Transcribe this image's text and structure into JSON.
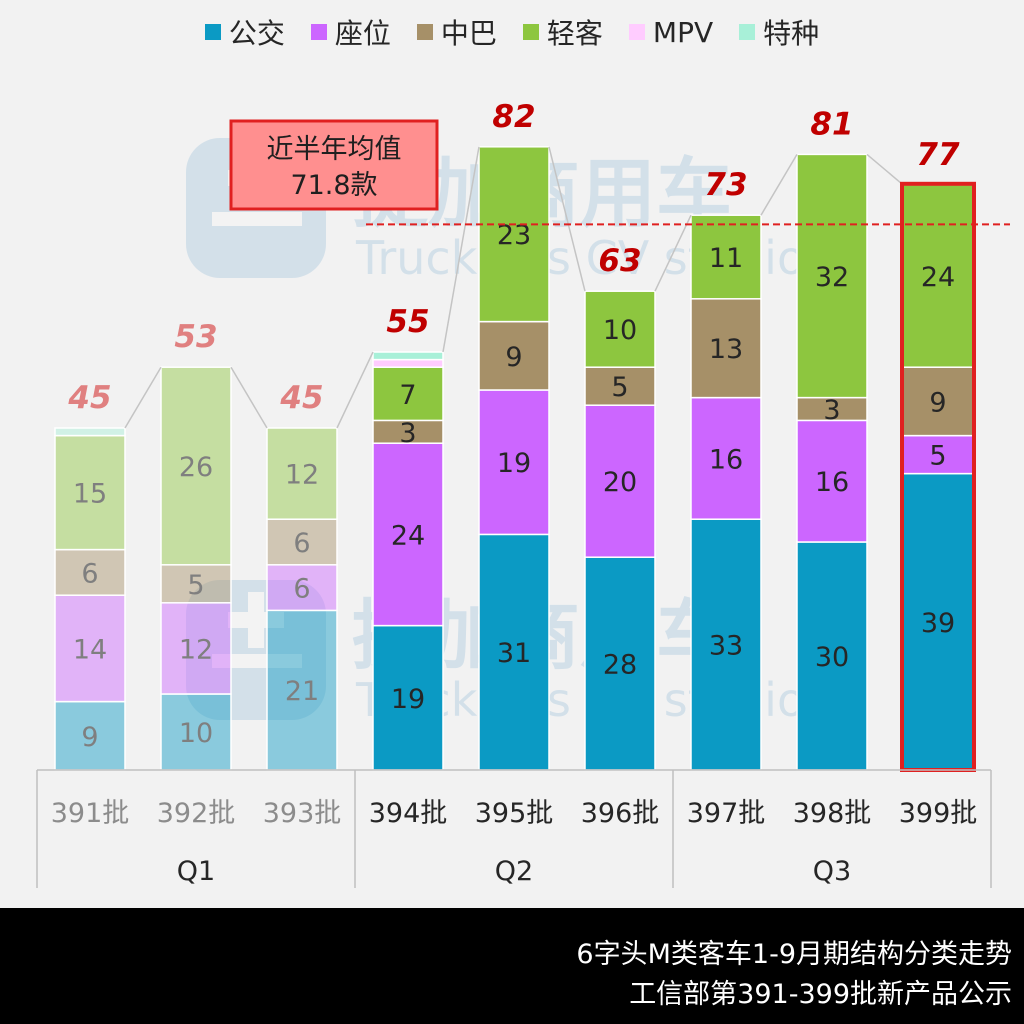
{
  "legend": [
    {
      "name": "公交",
      "color": "#0b9ac4"
    },
    {
      "name": "座位",
      "color": "#cc66ff"
    },
    {
      "name": "中巴",
      "color": "#a69068"
    },
    {
      "name": "轻客",
      "color": "#8dc63f"
    },
    {
      "name": "MPV",
      "color": "#ffccff"
    },
    {
      "name": "特种",
      "color": "#a8f0d8"
    }
  ],
  "watermark": {
    "logo_text": "提加商用车",
    "sub_text": "TruckPlus CV studio"
  },
  "average_box": {
    "line1": "近半年均值",
    "line2": "71.8款",
    "value": 71.8
  },
  "footer": {
    "line1": "6字头M类客车1-9月期结构分类走势",
    "line2": "工信部第391-399批新产品公示"
  },
  "chart_data": {
    "type": "bar",
    "stacked": true,
    "categories": [
      "391批",
      "392批",
      "393批",
      "394批",
      "395批",
      "396批",
      "397批",
      "398批",
      "399批"
    ],
    "groups": [
      {
        "label": "Q1",
        "categories": [
          "391批",
          "392批",
          "393批"
        ]
      },
      {
        "label": "Q2",
        "categories": [
          "394批",
          "395批",
          "396批"
        ]
      },
      {
        "label": "Q3",
        "categories": [
          "397批",
          "398批",
          "399批"
        ]
      }
    ],
    "series": [
      {
        "name": "公交",
        "color": "#0b9ac4",
        "values": [
          9,
          10,
          21,
          19,
          31,
          28,
          33,
          30,
          39
        ]
      },
      {
        "name": "座位",
        "color": "#cc66ff",
        "values": [
          14,
          12,
          6,
          24,
          19,
          20,
          16,
          16,
          5
        ]
      },
      {
        "name": "中巴",
        "color": "#a69068",
        "values": [
          6,
          5,
          6,
          3,
          9,
          5,
          13,
          3,
          9
        ]
      },
      {
        "name": "轻客",
        "color": "#8dc63f",
        "values": [
          15,
          26,
          12,
          7,
          23,
          10,
          11,
          32,
          24
        ]
      },
      {
        "name": "MPV",
        "color": "#ffccff",
        "values": [
          0,
          0,
          0,
          1,
          0,
          0,
          0,
          0,
          0
        ]
      },
      {
        "name": "特种",
        "color": "#a8f0d8",
        "values": [
          1,
          0,
          0,
          1,
          0,
          0,
          0,
          0,
          0
        ]
      }
    ],
    "totals": [
      45,
      53,
      45,
      55,
      82,
      63,
      73,
      81,
      77
    ],
    "faded_categories": [
      "391批",
      "392批",
      "393批"
    ],
    "highlighted_category": "399批",
    "reference_line": {
      "value": 71.8,
      "style": "dashed",
      "color": "#e02020"
    },
    "ylim": [
      0,
      86
    ],
    "grid": false
  }
}
